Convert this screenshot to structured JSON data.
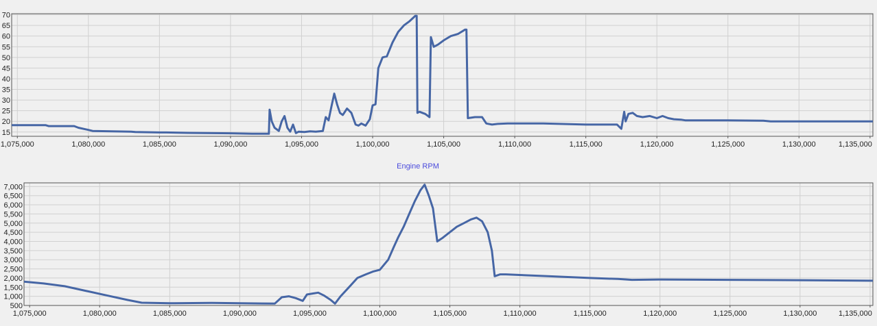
{
  "colors": {
    "background": "#f0f0f0",
    "plot_background": "#f0f0f0",
    "grid": "#d0d0d0",
    "axis": "#555555",
    "series": "#4666a5",
    "title": "#4a4adc",
    "tick_text": "#222222"
  },
  "chart_data": [
    {
      "type": "line",
      "title": "",
      "xlabel": "",
      "ylabel": "",
      "grid": true,
      "xlim": [
        1074600,
        1135200
      ],
      "ylim": [
        13,
        70.5
      ],
      "x_ticks": [
        1075000,
        1080000,
        1085000,
        1090000,
        1095000,
        1100000,
        1105000,
        1110000,
        1115000,
        1120000,
        1125000,
        1130000,
        1135000
      ],
      "x_tick_labels": [
        "1,075,000",
        "1,080,000",
        "1,085,000",
        "1,090,000",
        "1,095,000",
        "1,100,000",
        "1,105,000",
        "1,110,000",
        "1,115,000",
        "1,120,000",
        "1,125,000",
        "1,130,000",
        "1,135,000"
      ],
      "y_ticks": [
        15,
        20,
        25,
        30,
        35,
        40,
        45,
        50,
        55,
        60,
        65,
        70
      ],
      "y_tick_labels": [
        "15",
        "20",
        "25",
        "30",
        "35",
        "40",
        "45",
        "50",
        "55",
        "60",
        "65",
        "70"
      ],
      "series": [
        {
          "x": [
            1074600,
            1077000,
            1077200,
            1079000,
            1079300,
            1080000,
            1080300,
            1083000,
            1083300,
            1085000,
            1085500,
            1087000,
            1090000,
            1091500,
            1092500,
            1092700,
            1092750,
            1092900,
            1093100,
            1093400,
            1093600,
            1093800,
            1094000,
            1094200,
            1094400,
            1094600,
            1094800,
            1095200,
            1095600,
            1096000,
            1096500,
            1096700,
            1096900,
            1097100,
            1097300,
            1097500,
            1097700,
            1097900,
            1098200,
            1098500,
            1098800,
            1099000,
            1099200,
            1099500,
            1099800,
            1100000,
            1100200,
            1100400,
            1100700,
            1101000,
            1101400,
            1101800,
            1102200,
            1102600,
            1103000,
            1103100,
            1103150,
            1103300,
            1103500,
            1103700,
            1103900,
            1104000,
            1104100,
            1104300,
            1104600,
            1105000,
            1105500,
            1106000,
            1106500,
            1106600,
            1106700,
            1107200,
            1107700,
            1108000,
            1108400,
            1108800,
            1109500,
            1112000,
            1115000,
            1117200,
            1117500,
            1117700,
            1117800,
            1118000,
            1118300,
            1118600,
            1119000,
            1119500,
            1120000,
            1120400,
            1120800,
            1121200,
            1121700,
            1122000,
            1125000,
            1127500,
            1128000,
            1128200,
            1130000,
            1135200
          ],
          "y": [
            18.2,
            18.2,
            17.8,
            17.8,
            17.0,
            16.0,
            15.5,
            15.2,
            15.0,
            14.8,
            14.8,
            14.6,
            14.4,
            14.2,
            14.2,
            14.2,
            25.5,
            20.0,
            17.0,
            15.5,
            20.0,
            22.5,
            17.0,
            15.2,
            18.5,
            14.5,
            15.2,
            15.0,
            15.3,
            15.2,
            15.5,
            22.0,
            20.5,
            27.0,
            33.0,
            28.0,
            24.0,
            23.0,
            26.0,
            24.0,
            18.5,
            18.0,
            19.0,
            18.0,
            21.0,
            27.5,
            28.0,
            45.0,
            50.0,
            50.5,
            57.0,
            62.0,
            65.0,
            67.0,
            69.5,
            69.5,
            24.0,
            24.5,
            24.0,
            23.5,
            22.5,
            22.0,
            59.5,
            55.0,
            56.0,
            58.0,
            60.0,
            61.0,
            63.0,
            63.0,
            21.5,
            22.0,
            22.0,
            19.0,
            18.5,
            18.8,
            19.0,
            19.0,
            18.5,
            18.5,
            16.5,
            24.5,
            20.0,
            23.5,
            24.0,
            22.5,
            22.0,
            22.5,
            21.5,
            22.5,
            21.5,
            21.0,
            20.8,
            20.5,
            20.5,
            20.3,
            20.0,
            20.0,
            20.0,
            20.0
          ]
        }
      ]
    },
    {
      "type": "line",
      "title": "Engine RPM",
      "xlabel": "",
      "ylabel": "",
      "grid": true,
      "xlim": [
        1074600,
        1135200
      ],
      "ylim": [
        500,
        7200
      ],
      "x_ticks": [
        1075000,
        1080000,
        1085000,
        1090000,
        1095000,
        1100000,
        1105000,
        1110000,
        1115000,
        1120000,
        1125000,
        1130000,
        1135000
      ],
      "x_tick_labels": [
        "1,075,000",
        "1,080,000",
        "1,085,000",
        "1,090,000",
        "1,095,000",
        "1,100,000",
        "1,105,000",
        "1,110,000",
        "1,115,000",
        "1,120,000",
        "1,125,000",
        "1,130,000",
        "1,135,000"
      ],
      "y_ticks": [
        500,
        1000,
        1500,
        2000,
        2500,
        3000,
        3500,
        4000,
        4500,
        5000,
        5500,
        6000,
        6500,
        7000
      ],
      "y_tick_labels": [
        "500",
        "1,000",
        "1,500",
        "2,000",
        "2,500",
        "3,000",
        "3,500",
        "4,000",
        "4,500",
        "5,000",
        "5,500",
        "6,000",
        "6,500",
        "7,000"
      ],
      "series": [
        {
          "x": [
            1074600,
            1076000,
            1077500,
            1079000,
            1080500,
            1082000,
            1083000,
            1085000,
            1088000,
            1090000,
            1092500,
            1093000,
            1093500,
            1094000,
            1094500,
            1094800,
            1095200,
            1095600,
            1096000,
            1096500,
            1096800,
            1097200,
            1097800,
            1098400,
            1099000,
            1099500,
            1100000,
            1100600,
            1101000,
            1101300,
            1101700,
            1102100,
            1102500,
            1102900,
            1103200,
            1103500,
            1103800,
            1104100,
            1104500,
            1105000,
            1105500,
            1106000,
            1106500,
            1106900,
            1107300,
            1107700,
            1108000,
            1108200,
            1108600,
            1109000,
            1112000,
            1115000,
            1117000,
            1118000,
            1120000,
            1125000,
            1130000,
            1135200
          ],
          "y": [
            1800,
            1700,
            1550,
            1300,
            1050,
            800,
            650,
            620,
            640,
            620,
            600,
            950,
            1000,
            900,
            750,
            1100,
            1150,
            1200,
            1050,
            800,
            600,
            1000,
            1500,
            2000,
            2200,
            2350,
            2450,
            3000,
            3700,
            4200,
            4800,
            5500,
            6200,
            6800,
            7100,
            6500,
            5800,
            4000,
            4200,
            4500,
            4800,
            5000,
            5200,
            5300,
            5100,
            4500,
            3500,
            2100,
            2200,
            2200,
            2100,
            2000,
            1950,
            1900,
            1920,
            1900,
            1880,
            1850
          ]
        }
      ]
    }
  ]
}
